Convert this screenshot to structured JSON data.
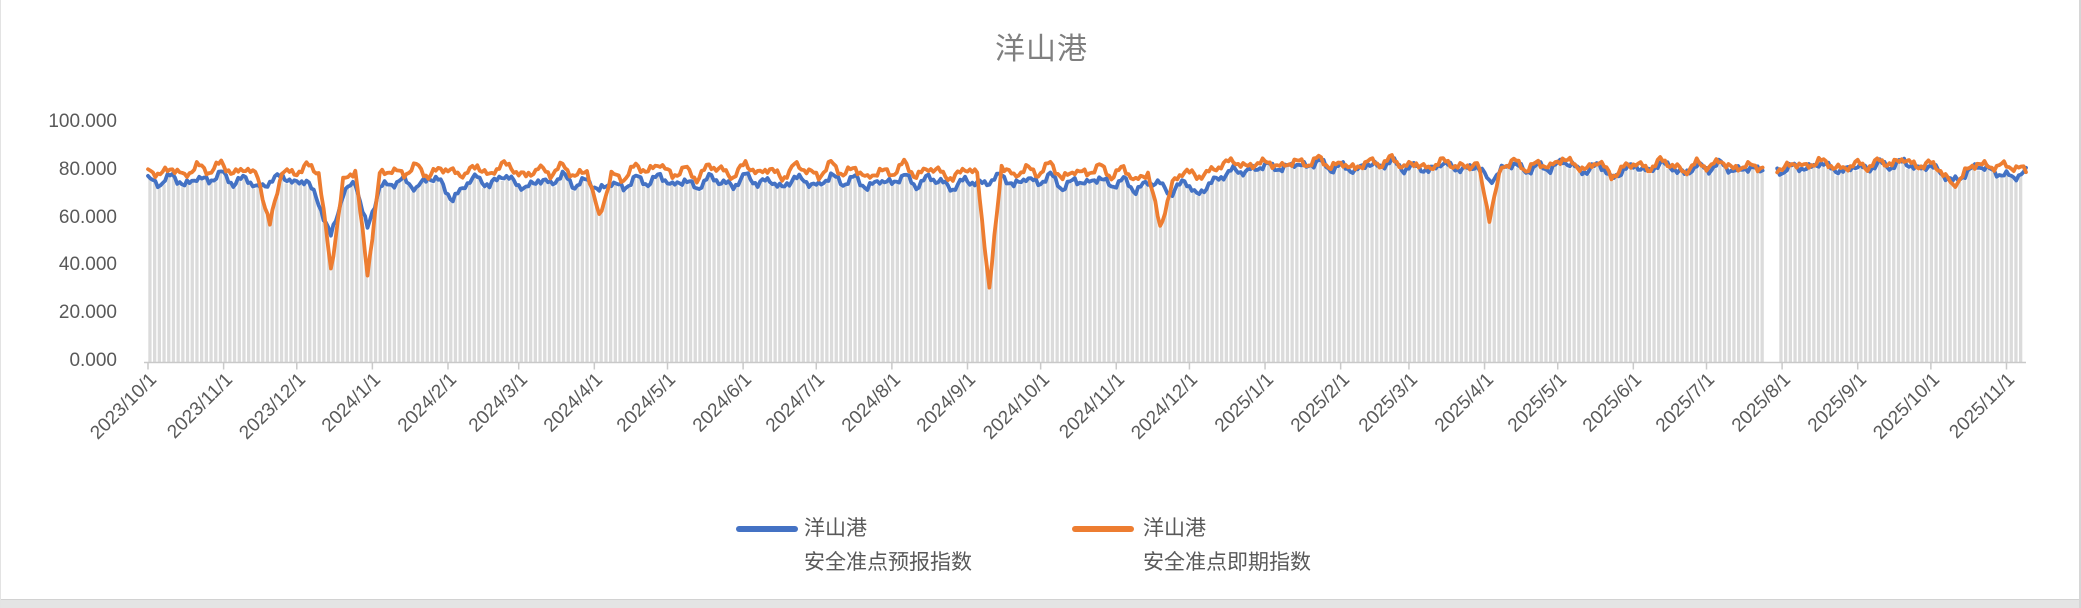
{
  "title": "洋山港",
  "colors": {
    "series_forecast": "#4472C4",
    "series_spot": "#ED7D31",
    "background_bars": "#DBDBDB",
    "axis": "#C9C9C9",
    "tick_text": "#595959",
    "title_text": "#7F7F7F"
  },
  "legend": {
    "items": [
      {
        "line1": "洋山港",
        "line2": "安全准点预报指数",
        "color": "#4472C4"
      },
      {
        "line1": "洋山港",
        "line2": "安全准点即期指数",
        "color": "#ED7D31"
      }
    ]
  },
  "chart_data": {
    "type": "line",
    "title": "洋山港",
    "xlabel": "",
    "ylabel": "",
    "ylim": [
      0,
      100
    ],
    "grid": false,
    "legend_position": "bottom",
    "y_tick_labels": [
      "0.000",
      "20.000",
      "40.000",
      "60.000",
      "80.000",
      "100.000"
    ],
    "y_tick_values": [
      0,
      20,
      40,
      60,
      80,
      100
    ],
    "x_tick_labels": [
      "2023/10/1",
      "2023/11/1",
      "2023/12/1",
      "2024/1/1",
      "2024/2/1",
      "2024/3/1",
      "2024/4/1",
      "2024/5/1",
      "2024/6/1",
      "2024/7/1",
      "2024/8/1",
      "2024/9/1",
      "2024/10/1",
      "2024/11/1",
      "2024/12/1",
      "2025/1/1",
      "2025/2/1",
      "2025/3/1",
      "2025/4/1",
      "2025/5/1",
      "2025/6/1",
      "2025/7/1",
      "2025/8/1",
      "2025/9/1",
      "2025/10/1",
      "2025/11/1"
    ],
    "x_tick_days": [
      0,
      31,
      61,
      92,
      123,
      152,
      183,
      213,
      244,
      274,
      305,
      336,
      366,
      397,
      427,
      458,
      489,
      517,
      548,
      578,
      609,
      639,
      670,
      701,
      731,
      762
    ],
    "sample_interval_days": 5,
    "total_days": 770,
    "data_gap": {
      "start_day": 662,
      "end_day": 668
    },
    "background_bars": {
      "follow": "min_of_series",
      "offset": -0.6
    },
    "series": [
      {
        "name": "洋山港安全准点预报指数",
        "color": "#4472C4",
        "values": [
          76,
          74,
          78,
          73,
          77,
          75,
          79,
          74,
          77,
          72,
          75,
          78,
          74,
          76,
          66,
          52,
          70,
          75,
          55,
          73,
          74,
          76,
          72,
          77,
          75,
          67,
          74,
          77,
          73,
          78,
          75,
          72,
          76,
          74,
          78,
          73,
          76,
          71,
          75,
          72,
          77,
          74,
          78,
          73,
          76,
          72,
          77,
          75,
          73,
          78,
          74,
          76,
          72,
          77,
          75,
          73,
          78,
          74,
          77,
          72,
          76,
          74,
          78,
          73,
          77,
          75,
          72,
          76,
          74,
          75,
          78,
          73,
          77,
          74,
          78,
          72,
          76,
          74,
          77,
          73,
          76,
          71,
          75,
          74,
          70,
          76,
          69,
          74,
          77,
          80,
          79,
          81,
          82,
          80,
          83,
          81,
          84,
          80,
          82,
          79,
          83,
          81,
          84,
          80,
          82,
          79,
          83,
          81,
          80,
          82,
          75,
          80,
          83,
          79,
          82,
          80,
          84,
          81,
          79,
          83,
          76,
          80,
          82,
          79,
          83,
          81,
          78,
          82,
          80,
          83,
          79,
          81,
          80,
          81,
          79,
          82,
          80,
          83,
          81,
          79,
          82,
          80,
          83,
          81,
          84,
          80,
          82,
          79,
          75,
          78,
          82,
          80,
          78,
          77,
          79
        ]
      },
      {
        "name": "洋山港安全准点即期指数",
        "color": "#ED7D31",
        "values": [
          80,
          78,
          81,
          77,
          82,
          79,
          83,
          78,
          81,
          77,
          57,
          80,
          78,
          82,
          79,
          38,
          75,
          80,
          36,
          78,
          80,
          78,
          82,
          77,
          81,
          79,
          78,
          82,
          77,
          83,
          80,
          77,
          81,
          78,
          82,
          77,
          80,
          60,
          78,
          76,
          82,
          79,
          83,
          77,
          81,
          76,
          82,
          80,
          77,
          83,
          78,
          81,
          76,
          82,
          80,
          77,
          83,
          78,
          81,
          76,
          80,
          78,
          83,
          77,
          81,
          79,
          76,
          81,
          78,
          30,
          82,
          77,
          81,
          78,
          83,
          76,
          80,
          78,
          82,
          77,
          81,
          75,
          79,
          56,
          74,
          80,
          77,
          79,
          82,
          84,
          81,
          83,
          83,
          81,
          84,
          82,
          85,
          81,
          83,
          80,
          84,
          82,
          85,
          81,
          83,
          80,
          84,
          82,
          81,
          83,
          60,
          81,
          84,
          80,
          83,
          81,
          85,
          82,
          80,
          84,
          77,
          81,
          83,
          80,
          84,
          82,
          79,
          83,
          81,
          84,
          80,
          82,
          81,
          82,
          80,
          83,
          81,
          84,
          82,
          80,
          83,
          81,
          84,
          82,
          85,
          81,
          83,
          80,
          73,
          79,
          83,
          81,
          82,
          81,
          80
        ]
      }
    ]
  }
}
